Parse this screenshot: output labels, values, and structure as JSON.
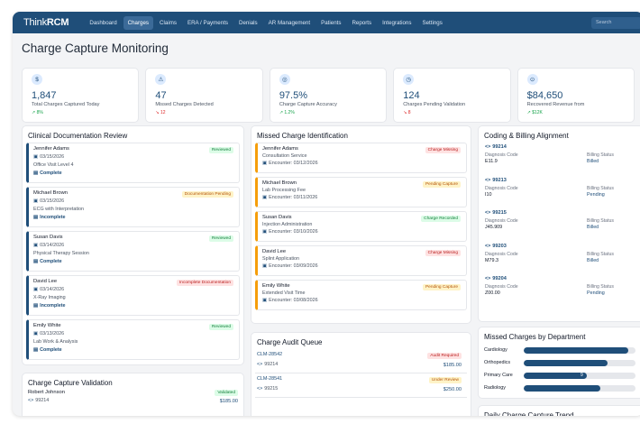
{
  "app": {
    "logo_plain": "Think",
    "logo_bold": "RCM"
  },
  "nav": [
    "Dashboard",
    "Charges",
    "Claims",
    "ERA / Payments",
    "Denials",
    "AR Management",
    "Patients",
    "Reports",
    "Integrations",
    "Settings"
  ],
  "search_placeholder": "Search",
  "page_title": "Charge Capture Monitoring",
  "kpis": [
    {
      "icon": "$",
      "value": "1,847",
      "label": "Total Charges Captured Today",
      "trend": "↗ 8%",
      "trend_dir": "up"
    },
    {
      "icon": "⚠",
      "value": "47",
      "label": "Missed Charges Detected",
      "trend": "↘ 12",
      "trend_dir": "down"
    },
    {
      "icon": "◎",
      "value": "97.5%",
      "label": "Charge Capture Accuracy",
      "trend": "↗ 1.2%",
      "trend_dir": "up"
    },
    {
      "icon": "◷",
      "value": "124",
      "label": "Charges Pending Validation",
      "trend": "↘ 8",
      "trend_dir": "down"
    },
    {
      "icon": "⊙",
      "value": "$84,650",
      "label": "Recovered Revenue from",
      "trend": "↗ $12K",
      "trend_dir": "up"
    }
  ],
  "clinical": {
    "title": "Clinical Documentation Review",
    "items": [
      {
        "name": "Jennifer Adams",
        "date": "03/15/2026",
        "service": "Office Visit Level 4",
        "status": "Complete",
        "badge": "Reviewed",
        "badge_type": "green"
      },
      {
        "name": "Michael Brown",
        "date": "03/15/2026",
        "service": "ECG with Interpretation",
        "status": "Incomplete",
        "badge": "Documentation Pending",
        "badge_type": "yellow"
      },
      {
        "name": "Susan Davis",
        "date": "03/14/2026",
        "service": "Physical Therapy Session",
        "status": "Complete",
        "badge": "Reviewed",
        "badge_type": "green"
      },
      {
        "name": "David Lee",
        "date": "03/14/2026",
        "service": "X-Ray Imaging",
        "status": "Incomplete",
        "badge": "Incomplete Documentation",
        "badge_type": "red"
      },
      {
        "name": "Emily White",
        "date": "03/13/2026",
        "service": "Lab Work & Analysis",
        "status": "Complete",
        "badge": "Reviewed",
        "badge_type": "green"
      }
    ]
  },
  "validation": {
    "title": "Charge Capture Validation",
    "name": "Robert Johnson",
    "badge": "Validated",
    "code": "99214",
    "amount": "$185.00"
  },
  "missed": {
    "title": "Missed Charge Identification",
    "items": [
      {
        "name": "Jennifer Adams",
        "service": "Consultation Service",
        "encounter": "Encounter: 03/12/2026",
        "badge": "Charge Missing",
        "badge_type": "red"
      },
      {
        "name": "Michael Brown",
        "service": "Lab Processing Fee",
        "encounter": "Encounter: 03/11/2026",
        "badge": "Pending Capture",
        "badge_type": "yellow"
      },
      {
        "name": "Susan Davis",
        "service": "Injection Administration",
        "encounter": "Encounter: 03/10/2026",
        "badge": "Charge Recorded",
        "badge_type": "green"
      },
      {
        "name": "David Lee",
        "service": "Splint Application",
        "encounter": "Encounter: 03/09/2026",
        "badge": "Charge Missing",
        "badge_type": "red"
      },
      {
        "name": "Emily White",
        "service": "Extended Visit Time",
        "encounter": "Encounter: 03/08/2026",
        "badge": "Pending Capture",
        "badge_type": "yellow"
      }
    ]
  },
  "audit": {
    "title": "Charge Audit Queue",
    "items": [
      {
        "id": "CLM-28542",
        "code": "99214",
        "amount": "$185.00",
        "badge": "Audit Required",
        "badge_type": "red"
      },
      {
        "id": "CLM-28541",
        "code": "99215",
        "amount": "$250.00",
        "badge": "Under Review",
        "badge_type": "yellow"
      }
    ]
  },
  "coding": {
    "title": "Coding & Billing Alignment",
    "dx_label": "Diagnosis Code",
    "status_label": "Billing Status",
    "items": [
      {
        "code": "99214",
        "dx": "E11.9",
        "status": "Billed"
      },
      {
        "code": "99213",
        "dx": "I10",
        "status": "Pending"
      },
      {
        "code": "99215",
        "dx": "J45.909",
        "status": "Billed"
      },
      {
        "code": "99203",
        "dx": "M79.3",
        "status": "Billed"
      },
      {
        "code": "99204",
        "dx": "Z00.00",
        "status": "Pending"
      }
    ]
  },
  "dept": {
    "title": "Missed Charges by Department",
    "items": [
      {
        "name": "Cardiology",
        "value": 15,
        "label": ""
      },
      {
        "name": "Orthopedics",
        "value": 12,
        "label": ""
      },
      {
        "name": "Primary Care",
        "value": 9,
        "label": "9"
      },
      {
        "name": "Radiology",
        "value": 11,
        "label": ""
      }
    ],
    "max": 16
  },
  "trend": {
    "title": "Daily Charge Capture Trend"
  },
  "colors": {
    "primary": "#1f4e79",
    "green": "#16a34a",
    "red": "#dc2626",
    "orange": "#f59e0b"
  }
}
